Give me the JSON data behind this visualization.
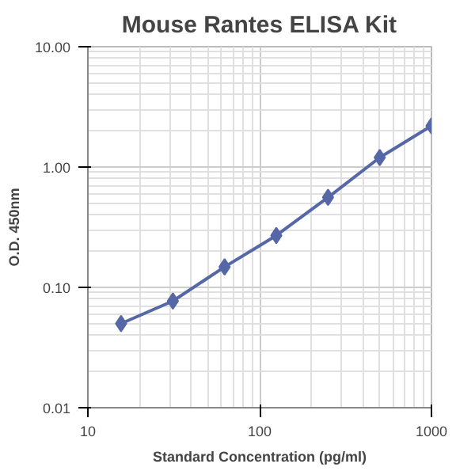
{
  "chart_data": {
    "type": "line",
    "title": "Mouse Rantes ELISA Kit",
    "xlabel": "Standard Concentration (pg/ml)",
    "ylabel": "O.D. 450nm",
    "x": [
      15.6,
      31.25,
      62.5,
      125,
      250,
      500,
      1000
    ],
    "series": [
      {
        "color": "#5567a6",
        "values": [
          0.05,
          0.077,
          0.148,
          0.27,
          0.56,
          1.2,
          2.2
        ]
      }
    ],
    "log": "xy",
    "xlim": [
      10,
      1000
    ],
    "ylim": [
      0.01,
      10
    ],
    "xticks": [
      10,
      100,
      1000
    ],
    "yticks": [
      {
        "value": 0.01,
        "label": "0.01"
      },
      {
        "value": 0.1,
        "label": "0.10"
      },
      {
        "value": 1,
        "label": "1.00"
      },
      {
        "value": 10,
        "label": "10.00"
      }
    ],
    "grid": true,
    "marker": "diamond",
    "line_style": "solid"
  }
}
